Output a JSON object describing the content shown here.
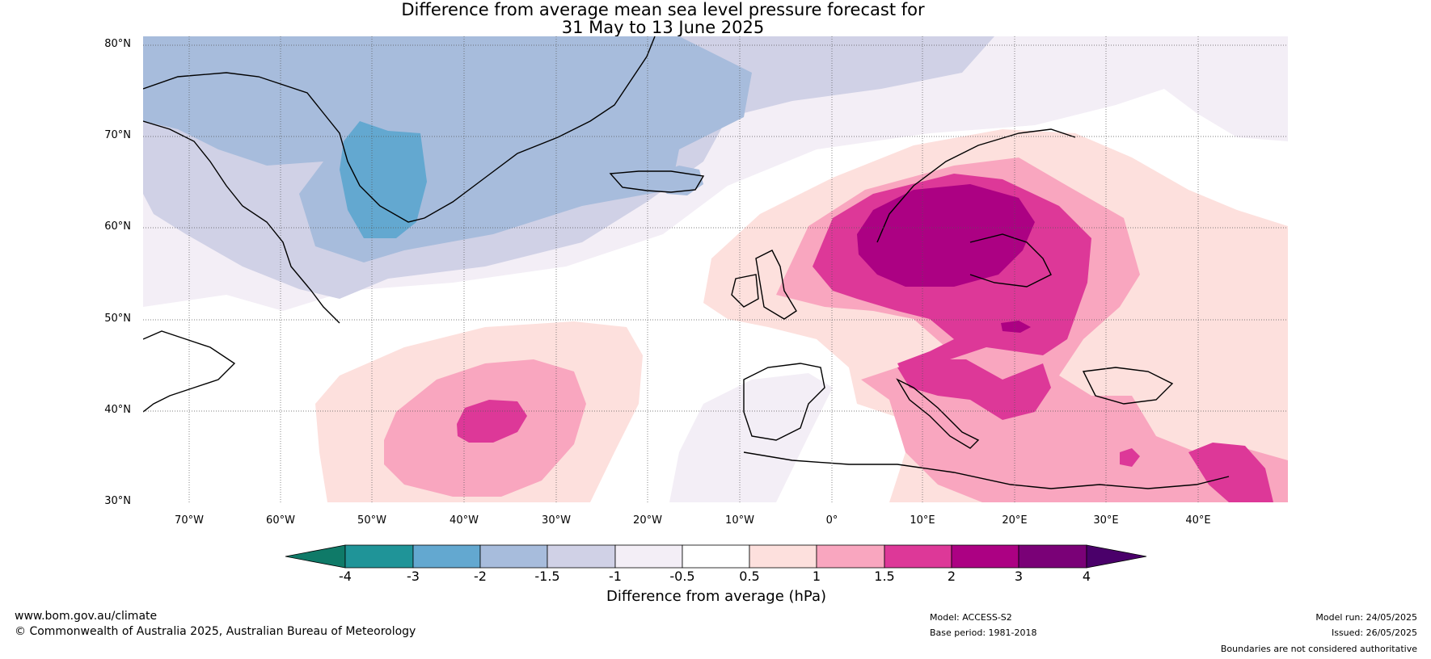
{
  "title": {
    "line1": "Difference from average mean sea level pressure forecast for",
    "line2": "31 May to 13 June 2025"
  },
  "axes": {
    "lat_labels": [
      "80°N",
      "70°N",
      "60°N",
      "50°N",
      "40°N",
      "30°N"
    ],
    "lon_labels": [
      "70°W",
      "60°W",
      "50°W",
      "40°W",
      "30°W",
      "20°W",
      "10°W",
      "0°",
      "10°E",
      "20°E",
      "30°E",
      "40°E"
    ]
  },
  "colorbar": {
    "label": "Difference from average (hPa)",
    "ticks": [
      "-4",
      "-3",
      "-2",
      "-1.5",
      "-1",
      "-0.5",
      "0.5",
      "1",
      "1.5",
      "2",
      "3",
      "4"
    ],
    "colors": [
      "#0f7a68",
      "#1f9498",
      "#63a8d0",
      "#a7bcdc",
      "#d0d1e6",
      "#f3eef6",
      "#ffffff",
      "#fde0dd",
      "#f9a6bf",
      "#dd3898",
      "#ac0183",
      "#7a0177",
      "#4a006a"
    ]
  },
  "footer": {
    "website": "www.bom.gov.au/climate",
    "copyright": "© Commonwealth of Australia 2025, Australian Bureau of Meteorology",
    "model": "Model: ACCESS-S2",
    "base_period": "Base period: 1981-2018",
    "model_run": "Model run: 24/05/2025",
    "issued": "Issued: 26/05/2025",
    "disclaimer": "Boundaries are not considered authoritative"
  }
}
